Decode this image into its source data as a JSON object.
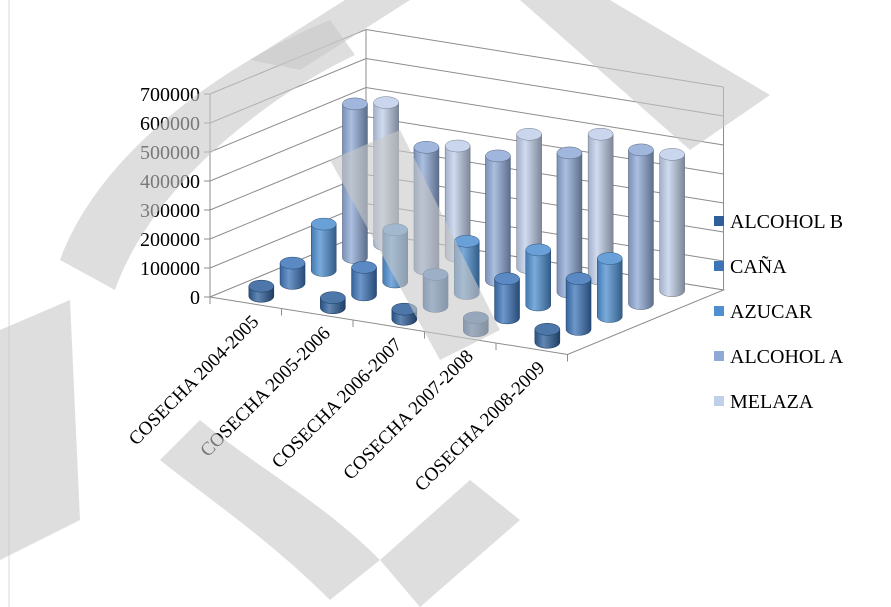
{
  "chart_data": {
    "type": "bar",
    "style": "3d-cylinder",
    "categories": [
      "COSECHA 2004-2005",
      "COSECHA 2005-2006",
      "COSECHA 2006-2007",
      "COSECHA 2007-2008",
      "COSECHA 2008-2009"
    ],
    "series": [
      {
        "name": "ALCOHOL B",
        "color": "#2e5f9a",
        "values": [
          35000,
          35000,
          35000,
          45000,
          45000
        ]
      },
      {
        "name": "CAÑA",
        "color": "#3d74b8",
        "values": [
          70000,
          95000,
          110000,
          135000,
          175000
        ]
      },
      {
        "name": "AZUCAR",
        "color": "#4f8fd0",
        "values": [
          160000,
          180000,
          180000,
          190000,
          200000
        ]
      },
      {
        "name": "ALCOHOL A",
        "color": "#8fa9d6",
        "values": [
          530000,
          420000,
          430000,
          480000,
          530000
        ]
      },
      {
        "name": "MELAZA",
        "color": "#c0cfea",
        "values": [
          490000,
          380000,
          460000,
          500000,
          470000
        ]
      }
    ],
    "yticks": [
      "0",
      "100000",
      "200000",
      "300000",
      "400000",
      "500000",
      "600000",
      "700000"
    ],
    "ylim": [
      0,
      700000
    ],
    "grid": true,
    "legend": "right",
    "watermark_color": "#c8c8c8"
  }
}
